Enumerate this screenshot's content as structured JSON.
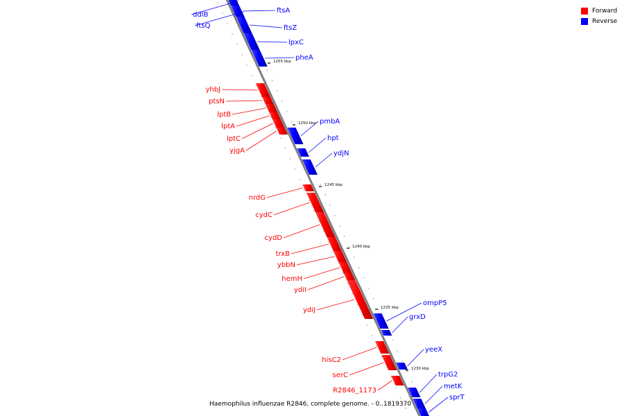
{
  "legend": {
    "forward_label": "Forward",
    "reverse_label": "Reverse",
    "forward_color": "#ff0000",
    "reverse_color": "#0000ff"
  },
  "caption": "Haemophilus influenzae R2846, complete genome. - 0..1819370",
  "axis_color": "#7f7f7f",
  "genes_reverse": [
    "ddlB",
    "ftsQ",
    "ftsA",
    "ftsZ",
    "lpxC",
    "pheA",
    "pmbA",
    "hpt",
    "ydjN",
    "ompP5",
    "grxD",
    "yeeX",
    "trpG2",
    "metK",
    "sprT"
  ],
  "genes_forward": [
    "yhbJ",
    "ptsN",
    "lptB",
    "lptA",
    "lptC",
    "yjgA",
    "nrdG",
    "cydC",
    "cydD",
    "trxB",
    "ybbN",
    "hemH",
    "ydiI",
    "ydiJ",
    "hisC2",
    "serC",
    "R2846_1173"
  ],
  "position_marks": [
    "1255 kbp",
    "1250 kbp",
    "1245 kbp",
    "1240 kbp",
    "1235 kbp",
    "1230 kbp"
  ]
}
